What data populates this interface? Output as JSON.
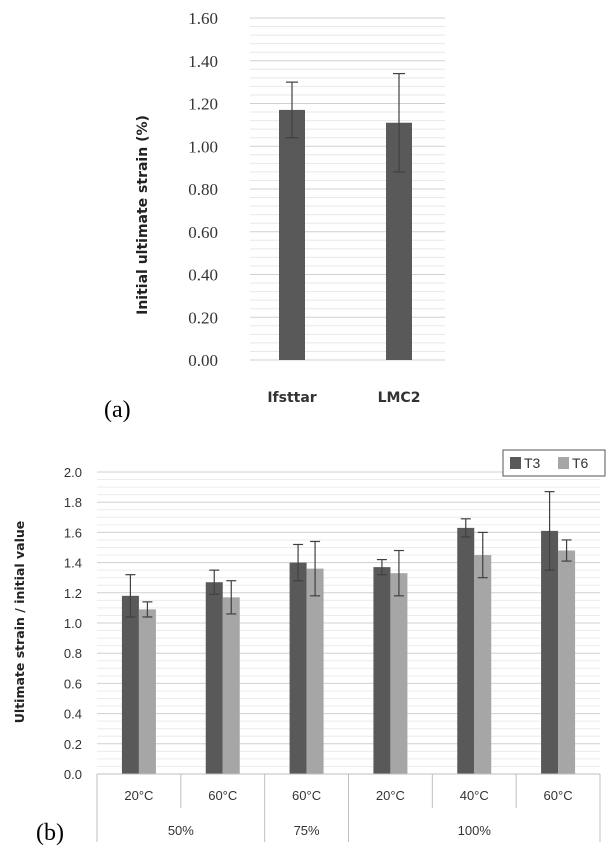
{
  "panel_a_label": "(a)",
  "panel_b_label": "(b)",
  "chart_data": [
    {
      "type": "bar",
      "title": "",
      "ylabel": "Initial ultimate strain (%)",
      "xlabel": "",
      "categories": [
        "Ifsttar",
        "LMC2"
      ],
      "values": [
        1.17,
        1.11
      ],
      "error": [
        0.13,
        0.23
      ],
      "ylim": [
        0,
        1.6
      ],
      "yticks": [
        "0.00",
        "0.20",
        "0.40",
        "0.60",
        "0.80",
        "1.00",
        "1.20",
        "1.40",
        "1.60"
      ],
      "grid": true,
      "color": "#595959"
    },
    {
      "type": "bar",
      "title": "",
      "ylabel": "Ultimate strain / initial value",
      "xlabel": "",
      "categories": [
        "20°C",
        "60°C",
        "60°C",
        "20°C",
        "40°C",
        "60°C"
      ],
      "groups": [
        {
          "label": "50%",
          "span": 2
        },
        {
          "label": "75%",
          "span": 1
        },
        {
          "label": "100%",
          "span": 3
        }
      ],
      "series": [
        {
          "name": "T3",
          "color": "#595959",
          "values": [
            1.18,
            1.27,
            1.4,
            1.37,
            1.63,
            1.61
          ],
          "error": [
            0.14,
            0.08,
            0.12,
            0.05,
            0.06,
            0.26
          ]
        },
        {
          "name": "T6",
          "color": "#a6a6a6",
          "values": [
            1.09,
            1.17,
            1.36,
            1.33,
            1.45,
            1.48
          ],
          "error": [
            0.05,
            0.11,
            0.18,
            0.15,
            0.15,
            0.07
          ]
        }
      ],
      "ylim": [
        0,
        2.0
      ],
      "yticks": [
        "0.0",
        "0.2",
        "0.4",
        "0.6",
        "0.8",
        "1.0",
        "1.2",
        "1.4",
        "1.6",
        "1.8",
        "2.0"
      ],
      "grid": true,
      "legend": "top-right"
    }
  ]
}
